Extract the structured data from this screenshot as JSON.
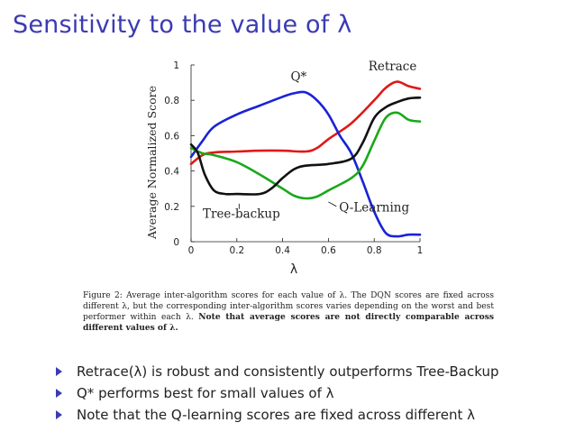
{
  "slide": {
    "title": "Sensitivity to the value of λ"
  },
  "caption": {
    "prefix": "Figure 2:  Average inter-algorithm scores for each value of λ.  The DQN scores are fixed across different λ, but the corresponding inter-algorithm scores varies depending on the worst and best performer within each λ. ",
    "note": "Note that average scores are not directly comparable across different values of λ."
  },
  "bullets": [
    "Retrace(λ) is robust and consistently outperforms Tree-Backup",
    "Q* performs best for small values of λ",
    "Note that the Q-learning scores are fixed across different λ"
  ],
  "colors": {
    "title": "#3b3bb3",
    "retrace": "#e01818",
    "qstar": "#1a22d6",
    "qlearning": "#1aa81a",
    "treebackup": "#111111"
  },
  "chart_data": {
    "type": "line",
    "title": "",
    "xlabel": "λ",
    "ylabel": "Average Normalized Score",
    "xlim": [
      0,
      1
    ],
    "ylim": [
      0,
      1
    ],
    "xticks": [
      "0",
      "0.2",
      "0.4",
      "0.6",
      "0.8",
      "1"
    ],
    "xtick_values": [
      0,
      0.2,
      0.4,
      0.6,
      0.8,
      1
    ],
    "yticks": [
      "0",
      "0.2",
      "0.4",
      "0.6",
      "0.8",
      "1"
    ],
    "ytick_values": [
      0,
      0.2,
      0.4,
      0.6,
      0.8,
      1
    ],
    "series": [
      {
        "name": "Retrace",
        "color": "#e01818",
        "x": [
          0,
          0.05,
          0.1,
          0.2,
          0.3,
          0.4,
          0.5,
          0.55,
          0.6,
          0.7,
          0.8,
          0.85,
          0.9,
          0.95,
          1.0
        ],
        "y": [
          0.44,
          0.49,
          0.505,
          0.51,
          0.515,
          0.515,
          0.51,
          0.53,
          0.58,
          0.67,
          0.8,
          0.87,
          0.905,
          0.88,
          0.865
        ]
      },
      {
        "name": "Q*",
        "color": "#1a22d6",
        "x": [
          0,
          0.05,
          0.1,
          0.2,
          0.3,
          0.4,
          0.45,
          0.5,
          0.55,
          0.6,
          0.65,
          0.7,
          0.75,
          0.8,
          0.85,
          0.9,
          0.95,
          1.0
        ],
        "y": [
          0.48,
          0.57,
          0.65,
          0.72,
          0.77,
          0.82,
          0.84,
          0.845,
          0.8,
          0.72,
          0.6,
          0.5,
          0.34,
          0.17,
          0.05,
          0.03,
          0.04,
          0.04
        ]
      },
      {
        "name": "Q-Learning",
        "color": "#1aa81a",
        "x": [
          0,
          0.05,
          0.1,
          0.2,
          0.3,
          0.4,
          0.45,
          0.5,
          0.55,
          0.6,
          0.7,
          0.75,
          0.8,
          0.85,
          0.9,
          0.95,
          1.0
        ],
        "y": [
          0.53,
          0.5,
          0.49,
          0.45,
          0.38,
          0.3,
          0.26,
          0.245,
          0.255,
          0.29,
          0.36,
          0.43,
          0.57,
          0.7,
          0.73,
          0.69,
          0.68
        ]
      },
      {
        "name": "Tree-backup",
        "color": "#111111",
        "x": [
          0,
          0.03,
          0.06,
          0.1,
          0.15,
          0.2,
          0.3,
          0.35,
          0.4,
          0.45,
          0.5,
          0.6,
          0.7,
          0.75,
          0.8,
          0.85,
          0.9,
          0.95,
          1.0
        ],
        "y": [
          0.55,
          0.5,
          0.38,
          0.29,
          0.27,
          0.27,
          0.27,
          0.3,
          0.36,
          0.41,
          0.43,
          0.44,
          0.47,
          0.56,
          0.7,
          0.76,
          0.79,
          0.81,
          0.815
        ]
      }
    ],
    "annotations": [
      {
        "text": "Retrace",
        "x": 0.88,
        "y": 0.97
      },
      {
        "text": "Q*",
        "x": 0.47,
        "y": 0.91
      },
      {
        "text": "Q-Learning",
        "x": 0.8,
        "y": 0.17
      },
      {
        "text": "Tree-backup",
        "x": 0.22,
        "y": 0.135
      }
    ]
  }
}
